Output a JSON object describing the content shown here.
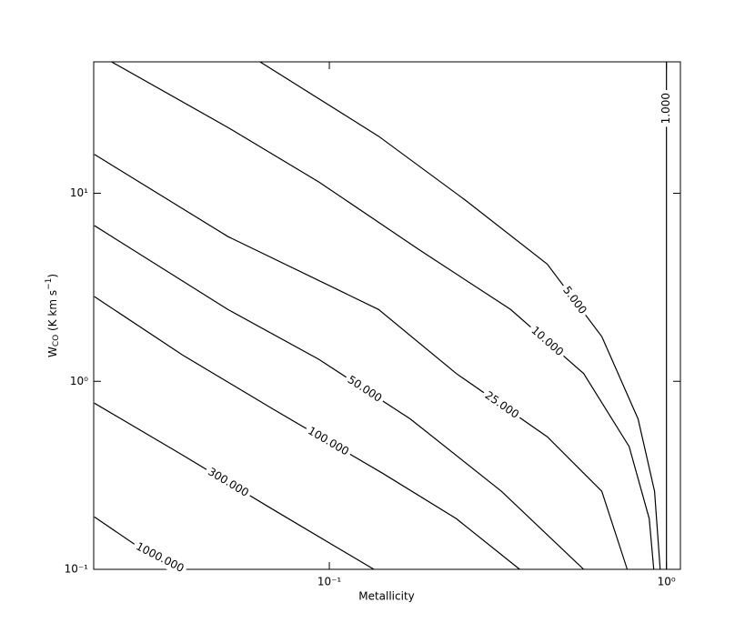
{
  "chart_data": {
    "type": "contour",
    "xlabel": "Metallicity",
    "ylabel": [
      "W",
      "CO",
      " (K km s",
      "−1",
      ")"
    ],
    "xscale": "log",
    "yscale": "log",
    "xlim": [
      0.02,
      1.1
    ],
    "ylim": [
      0.1,
      50
    ],
    "xticks": [
      {
        "value": 0.1,
        "label": "10⁻¹"
      },
      {
        "value": 1,
        "label": "10⁰"
      }
    ],
    "yticks": [
      {
        "value": 0.1,
        "label": "10⁻¹"
      },
      {
        "value": 1,
        "label": "10⁰"
      },
      {
        "value": 10,
        "label": "10¹"
      }
    ],
    "color": "#000000",
    "contours": [
      {
        "level": 1,
        "value_label": "1.000",
        "x": [
          1,
          1,
          1
        ],
        "y": [
          0.1,
          16,
          50
        ]
      },
      {
        "level": 5,
        "value_label": "5.000",
        "x": [
          0.0623,
          0.14,
          0.253,
          0.443,
          0.643,
          0.824,
          0.922,
          0.958
        ],
        "y": [
          50,
          20.1,
          9.2,
          4.2,
          1.73,
          0.63,
          0.26,
          0.1
        ]
      },
      {
        "level": 10,
        "value_label": "10.000",
        "x": [
          0.0226,
          0.05,
          0.093,
          0.185,
          0.345,
          0.568,
          0.775,
          0.889,
          0.917
        ],
        "y": [
          50,
          22.4,
          11.5,
          5.0,
          2.41,
          1.1,
          0.45,
          0.186,
          0.1
        ]
      },
      {
        "level": 25,
        "value_label": "25.000",
        "x": [
          0.0201,
          0.05,
          0.14,
          0.238,
          0.443,
          0.643,
          0.765
        ],
        "y": [
          16.1,
          5.89,
          2.41,
          1.1,
          0.507,
          0.26,
          0.1
        ]
      },
      {
        "level": 50,
        "value_label": "50.000",
        "x": [
          0.0201,
          0.05,
          0.093,
          0.174,
          0.324,
          0.568
        ],
        "y": [
          6.73,
          2.41,
          1.31,
          0.63,
          0.26,
          0.1
        ]
      },
      {
        "level": 100,
        "value_label": "100.000",
        "x": [
          0.0201,
          0.0367,
          0.0684,
          0.144,
          0.238,
          0.367
        ],
        "y": [
          2.82,
          1.38,
          0.708,
          0.324,
          0.186,
          0.1
        ]
      },
      {
        "level": 300,
        "value_label": "300.000",
        "x": [
          0.0201,
          0.0367,
          0.0684,
          0.1356
        ],
        "y": [
          0.765,
          0.405,
          0.207,
          0.1
        ]
      },
      {
        "level": 1000,
        "value_label": "1000.000",
        "x": [
          0.0201,
          0.0269,
          0.0367
        ],
        "y": [
          0.19,
          0.133,
          0.1
        ]
      }
    ]
  }
}
